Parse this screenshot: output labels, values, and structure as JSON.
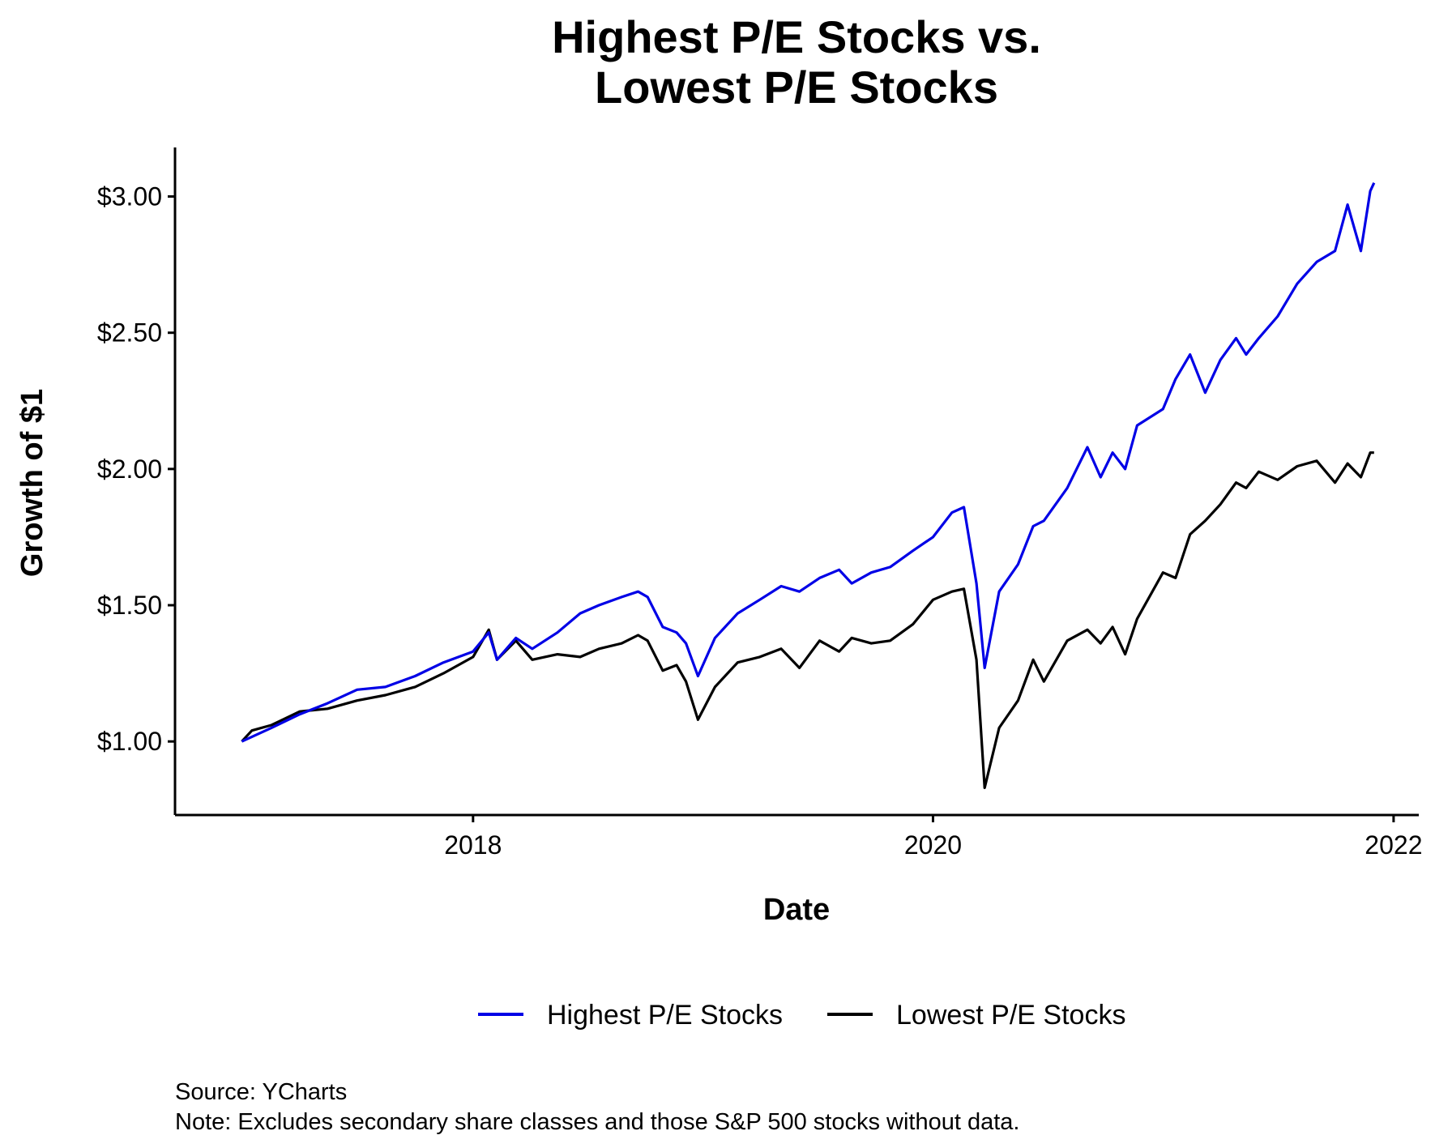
{
  "chart_data": {
    "type": "line",
    "title": [
      "Highest P/E Stocks vs.",
      "Lowest P/E Stocks"
    ],
    "xlabel": "Date",
    "ylabel": "Growth of $1",
    "x_ticks": [
      "2018",
      "2020",
      "2022"
    ],
    "y_ticks": [
      "$1.00",
      "$1.50",
      "$2.00",
      "$2.50",
      "$3.00"
    ],
    "y_tick_values": [
      1.0,
      1.5,
      2.0,
      2.5,
      3.0
    ],
    "xlim": [
      "2016-09-15",
      "2022-02-10"
    ],
    "ylim": [
      0.73,
      3.18
    ],
    "grid": false,
    "legend_position": "bottom",
    "colors": {
      "Highest P/E Stocks": "#0000e6",
      "Lowest P/E Stocks": "#000000"
    },
    "series": [
      {
        "name": "Highest P/E Stocks",
        "x": [
          "2016-12-30",
          "2017-02-15",
          "2017-04-01",
          "2017-05-15",
          "2017-07-01",
          "2017-08-15",
          "2017-10-01",
          "2017-11-15",
          "2018-01-01",
          "2018-01-26",
          "2018-02-08",
          "2018-03-10",
          "2018-04-05",
          "2018-05-15",
          "2018-06-20",
          "2018-07-20",
          "2018-08-25",
          "2018-09-20",
          "2018-10-05",
          "2018-10-29",
          "2018-11-20",
          "2018-12-05",
          "2018-12-24",
          "2019-01-20",
          "2019-02-25",
          "2019-04-01",
          "2019-05-05",
          "2019-06-03",
          "2019-07-05",
          "2019-08-05",
          "2019-08-25",
          "2019-09-25",
          "2019-10-25",
          "2019-11-30",
          "2020-01-01",
          "2020-01-31",
          "2020-02-19",
          "2020-03-10",
          "2020-03-23",
          "2020-04-15",
          "2020-05-15",
          "2020-06-08",
          "2020-06-25",
          "2020-08-01",
          "2020-09-02",
          "2020-09-23",
          "2020-10-12",
          "2020-11-01",
          "2020-11-20",
          "2020-12-31",
          "2021-01-20",
          "2021-02-12",
          "2021-03-08",
          "2021-04-01",
          "2021-04-26",
          "2021-05-12",
          "2021-06-01",
          "2021-07-01",
          "2021-08-01",
          "2021-09-01",
          "2021-09-30",
          "2021-10-20",
          "2021-11-10",
          "2021-11-25",
          "2021-12-01"
        ],
        "values": [
          1.0,
          1.05,
          1.1,
          1.14,
          1.19,
          1.2,
          1.24,
          1.29,
          1.33,
          1.4,
          1.3,
          1.38,
          1.34,
          1.4,
          1.47,
          1.5,
          1.53,
          1.55,
          1.53,
          1.42,
          1.4,
          1.36,
          1.24,
          1.38,
          1.47,
          1.52,
          1.57,
          1.55,
          1.6,
          1.63,
          1.58,
          1.62,
          1.64,
          1.7,
          1.75,
          1.84,
          1.86,
          1.58,
          1.27,
          1.55,
          1.65,
          1.79,
          1.81,
          1.93,
          2.08,
          1.97,
          2.06,
          2.0,
          2.16,
          2.22,
          2.33,
          2.42,
          2.28,
          2.4,
          2.48,
          2.42,
          2.48,
          2.56,
          2.68,
          2.76,
          2.8,
          2.97,
          2.8,
          3.02,
          3.05
        ]
      },
      {
        "name": "Lowest P/E Stocks",
        "x": [
          "2016-12-30",
          "2017-01-15",
          "2017-02-15",
          "2017-04-01",
          "2017-05-15",
          "2017-07-01",
          "2017-08-15",
          "2017-10-01",
          "2017-11-15",
          "2018-01-01",
          "2018-01-26",
          "2018-02-08",
          "2018-03-10",
          "2018-04-05",
          "2018-05-15",
          "2018-06-20",
          "2018-07-20",
          "2018-08-25",
          "2018-09-20",
          "2018-10-05",
          "2018-10-29",
          "2018-11-20",
          "2018-12-05",
          "2018-12-24",
          "2019-01-20",
          "2019-02-25",
          "2019-04-01",
          "2019-05-05",
          "2019-06-03",
          "2019-07-05",
          "2019-08-05",
          "2019-08-25",
          "2019-09-25",
          "2019-10-25",
          "2019-11-30",
          "2020-01-01",
          "2020-01-31",
          "2020-02-19",
          "2020-03-10",
          "2020-03-23",
          "2020-04-15",
          "2020-05-15",
          "2020-06-08",
          "2020-06-25",
          "2020-08-01",
          "2020-09-02",
          "2020-09-23",
          "2020-10-12",
          "2020-11-01",
          "2020-11-20",
          "2020-12-31",
          "2021-01-20",
          "2021-02-12",
          "2021-03-08",
          "2021-04-01",
          "2021-04-26",
          "2021-05-12",
          "2021-06-01",
          "2021-07-01",
          "2021-08-01",
          "2021-09-01",
          "2021-09-30",
          "2021-10-20",
          "2021-11-10",
          "2021-11-25",
          "2021-12-01"
        ],
        "values": [
          1.0,
          1.04,
          1.06,
          1.11,
          1.12,
          1.15,
          1.17,
          1.2,
          1.25,
          1.31,
          1.41,
          1.3,
          1.37,
          1.3,
          1.32,
          1.31,
          1.34,
          1.36,
          1.39,
          1.37,
          1.26,
          1.28,
          1.22,
          1.08,
          1.2,
          1.29,
          1.31,
          1.34,
          1.27,
          1.37,
          1.33,
          1.38,
          1.36,
          1.37,
          1.43,
          1.52,
          1.55,
          1.56,
          1.3,
          0.83,
          1.05,
          1.15,
          1.3,
          1.22,
          1.37,
          1.41,
          1.36,
          1.42,
          1.32,
          1.45,
          1.62,
          1.6,
          1.76,
          1.81,
          1.87,
          1.95,
          1.93,
          1.99,
          1.96,
          2.01,
          2.03,
          1.95,
          2.02,
          1.97,
          2.06,
          2.06
        ]
      }
    ]
  },
  "caption": {
    "source": "Source: YCharts",
    "note": "Note: Excludes secondary share classes and those S&P 500 stocks without data."
  }
}
